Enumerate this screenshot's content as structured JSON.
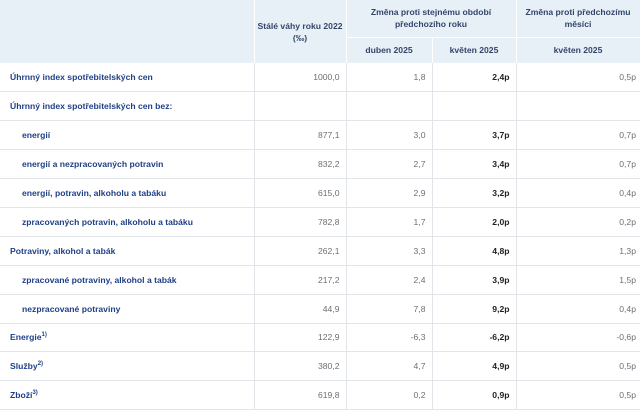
{
  "header": {
    "weights": "Stálé váhy roku 2022 (‰)",
    "change_year": "Změna proti stejnému období předchozího roku",
    "change_month": "Změna proti předchozímu měsíci",
    "col_apr": "duben 2025",
    "col_may": "květen 2025",
    "col_may_month": "květen 2025"
  },
  "rows": [
    {
      "label": "Úhrnný index spotřebitelských cen",
      "sup": "",
      "weight": "1000,0",
      "apr": "1,8",
      "may": "2,4p",
      "mom": "0,5p"
    },
    {
      "label": "Úhrnný index spotřebitelských cen bez:",
      "sup": "",
      "weight": "",
      "apr": "",
      "may": "",
      "mom": ""
    },
    {
      "label": "energií",
      "sup": "",
      "weight": "877,1",
      "apr": "3,0",
      "may": "3,7p",
      "mom": "0,7p"
    },
    {
      "label": "energií a nezpracovaných potravin",
      "sup": "",
      "weight": "832,2",
      "apr": "2,7",
      "may": "3,4p",
      "mom": "0,7p"
    },
    {
      "label": "energií, potravin, alkoholu a tabáku",
      "sup": "",
      "weight": "615,0",
      "apr": "2,9",
      "may": "3,2p",
      "mom": "0,4p"
    },
    {
      "label": "zpracovaných potravin, alkoholu a tabáku",
      "sup": "",
      "weight": "782,8",
      "apr": "1,7",
      "may": "2,0p",
      "mom": "0,2p"
    },
    {
      "label": "Potraviny, alkohol a tabák",
      "sup": "",
      "weight": "262,1",
      "apr": "3,3",
      "may": "4,8p",
      "mom": "1,3p"
    },
    {
      "label": "zpracované potraviny, alkohol a tabák",
      "sup": "",
      "weight": "217,2",
      "apr": "2,4",
      "may": "3,9p",
      "mom": "1,5p"
    },
    {
      "label": "nezpracované potraviny",
      "sup": "",
      "weight": "44,9",
      "apr": "7,8",
      "may": "9,2p",
      "mom": "0,4p"
    },
    {
      "label": "Energie",
      "sup": "1)",
      "weight": "122,9",
      "apr": "-6,3",
      "may": "-6,2p",
      "mom": "-0,6p"
    },
    {
      "label": "Služby",
      "sup": "2)",
      "weight": "380,2",
      "apr": "4,7",
      "may": "4,9p",
      "mom": "0,5p"
    },
    {
      "label": "Zboží",
      "sup": "3)",
      "weight": "619,8",
      "apr": "0,2",
      "may": "0,9p",
      "mom": "0,5p"
    }
  ]
}
